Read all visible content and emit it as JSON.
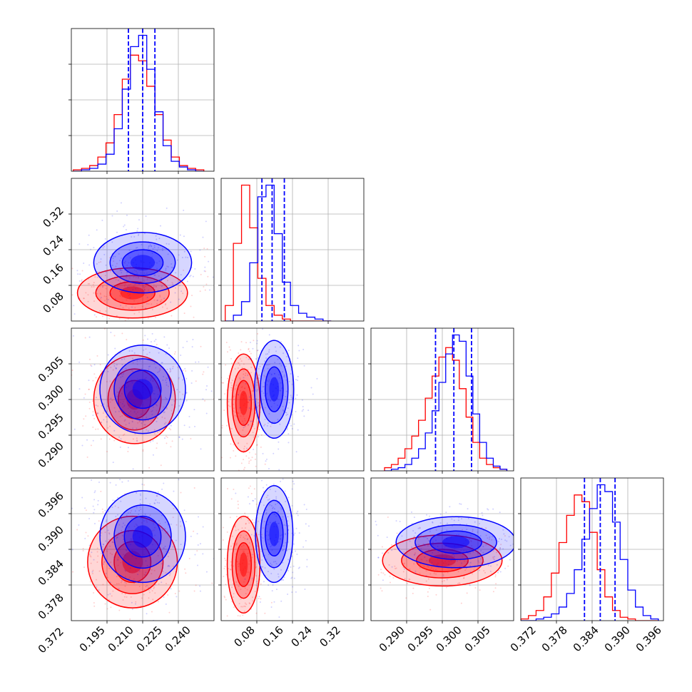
{
  "chart_data": {
    "type": "corner",
    "grid": true,
    "colors": {
      "red": "#ff0000",
      "blue": "#0000ff"
    },
    "panels": [
      {
        "id": "0-0",
        "row": 0,
        "col": 0,
        "type": "histogram",
        "xlim": [
          0.185,
          0.255
        ],
        "bins": [
          0.186,
          0.19,
          0.194,
          0.198,
          0.202,
          0.206,
          0.21,
          0.214,
          0.218,
          0.222,
          0.226,
          0.23,
          0.234,
          0.238,
          0.242,
          0.246,
          0.25
        ],
        "series": [
          {
            "color": "red",
            "counts": [
              1,
              2,
              4,
              10,
              20,
              40,
              65,
              82,
              78,
              60,
              40,
              22,
              10,
              4,
              2,
              1
            ]
          },
          {
            "color": "blue",
            "counts": [
              0,
              1,
              2,
              5,
              12,
              30,
              58,
              88,
              96,
              72,
              42,
              18,
              7,
              3,
              1,
              0
            ]
          }
        ],
        "quantiles": [
          0.213,
          0.22,
          0.226
        ]
      },
      {
        "id": "1-0",
        "row": 1,
        "col": 0,
        "type": "2d",
        "xlim": [
          0.185,
          0.255
        ],
        "ylim": [
          0.05,
          0.38
        ],
        "yticks": [
          "0.32",
          "0.24",
          "0.16",
          "0.08"
        ],
        "series": [
          {
            "color": "red",
            "center": [
              0.215,
              0.115
            ],
            "levels": [
              [
                0.006,
                0.015
              ],
              [
                0.011,
                0.026
              ],
              [
                0.018,
                0.04
              ],
              [
                0.027,
                0.058
              ]
            ]
          },
          {
            "color": "blue",
            "center": [
              0.22,
              0.185
            ],
            "levels": [
              [
                0.006,
                0.018
              ],
              [
                0.01,
                0.03
              ],
              [
                0.016,
                0.048
              ],
              [
                0.024,
                0.07
              ]
            ]
          }
        ]
      },
      {
        "id": "1-1",
        "row": 1,
        "col": 1,
        "type": "histogram",
        "xlim": [
          0.05,
          0.4
        ],
        "bins": [
          0.06,
          0.08,
          0.1,
          0.12,
          0.14,
          0.16,
          0.18,
          0.2,
          0.22,
          0.24,
          0.26,
          0.28,
          0.3,
          0.32
        ],
        "series": [
          {
            "color": "red",
            "counts": [
              8,
              40,
              70,
              48,
              22,
              8,
              3,
              1,
              0,
              0,
              0,
              0,
              0
            ]
          },
          {
            "color": "blue",
            "counts": [
              0,
              3,
              10,
              30,
              64,
              70,
              45,
              20,
              8,
              4,
              2,
              1,
              0
            ]
          }
        ],
        "quantiles": [
          0.15,
          0.175,
          0.205
        ]
      },
      {
        "id": "2-0",
        "row": 2,
        "col": 0,
        "type": "2d",
        "xlim": [
          0.185,
          0.255
        ],
        "ylim": [
          0.286,
          0.307
        ],
        "yticks": [
          "0.305",
          "0.300",
          "0.295",
          "0.290"
        ],
        "series": [
          {
            "color": "red",
            "center": [
              0.216,
              0.2965
            ],
            "levels": [
              [
                0.004,
                0.0015
              ],
              [
                0.008,
                0.0028
              ],
              [
                0.013,
                0.0045
              ],
              [
                0.02,
                0.0065
              ]
            ]
          },
          {
            "color": "blue",
            "center": [
              0.22,
              0.298
            ],
            "levels": [
              [
                0.005,
                0.0015
              ],
              [
                0.009,
                0.0028
              ],
              [
                0.014,
                0.0045
              ],
              [
                0.021,
                0.0065
              ]
            ]
          }
        ]
      },
      {
        "id": "2-1",
        "row": 2,
        "col": 1,
        "type": "2d",
        "xlim": [
          0.05,
          0.4
        ],
        "ylim": [
          0.286,
          0.307
        ],
        "series": [
          {
            "color": "red",
            "center": [
              0.105,
              0.296
            ],
            "levels": [
              [
                0.01,
                0.0018
              ],
              [
                0.019,
                0.0033
              ],
              [
                0.028,
                0.005
              ],
              [
                0.04,
                0.0072
              ]
            ]
          },
          {
            "color": "blue",
            "center": [
              0.18,
              0.298
            ],
            "levels": [
              [
                0.012,
                0.0018
              ],
              [
                0.022,
                0.0033
              ],
              [
                0.034,
                0.005
              ],
              [
                0.048,
                0.0072
              ]
            ]
          }
        ]
      },
      {
        "id": "2-2",
        "row": 2,
        "col": 2,
        "type": "histogram",
        "xlim": [
          0.286,
          0.307
        ],
        "bins": [
          0.288,
          0.289,
          0.29,
          0.291,
          0.292,
          0.293,
          0.294,
          0.295,
          0.296,
          0.297,
          0.298,
          0.299,
          0.3,
          0.301,
          0.302,
          0.303,
          0.304,
          0.305,
          0.306
        ],
        "series": [
          {
            "color": "red",
            "counts": [
              2,
              4,
              8,
              14,
              22,
              32,
              46,
              60,
              72,
              78,
              70,
              52,
              34,
              18,
              8,
              4,
              2,
              1
            ]
          },
          {
            "color": "blue",
            "counts": [
              0,
              1,
              2,
              4,
              8,
              14,
              24,
              38,
              56,
              74,
              86,
              82,
              60,
              36,
              18,
              8,
              3,
              1
            ]
          }
        ],
        "quantiles": [
          0.2955,
          0.2982,
          0.3008
        ]
      },
      {
        "id": "3-0",
        "row": 3,
        "col": 0,
        "type": "2d",
        "xlim": [
          0.185,
          0.255
        ],
        "ylim": [
          0.372,
          0.4
        ],
        "yticks": [
          "0.396",
          "0.390",
          "0.384",
          "0.378",
          "0.372"
        ],
        "xticks": [
          "0.195",
          "0.210",
          "0.225",
          "0.240"
        ],
        "series": [
          {
            "color": "red",
            "center": [
              0.215,
              0.3835
            ],
            "levels": [
              [
                0.005,
                0.0022
              ],
              [
                0.009,
                0.004
              ],
              [
                0.015,
                0.0062
              ],
              [
                0.022,
                0.009
              ]
            ]
          },
          {
            "color": "blue",
            "center": [
              0.22,
              0.3885
            ],
            "levels": [
              [
                0.005,
                0.0022
              ],
              [
                0.009,
                0.004
              ],
              [
                0.014,
                0.0062
              ],
              [
                0.021,
                0.009
              ]
            ]
          }
        ]
      },
      {
        "id": "3-1",
        "row": 3,
        "col": 1,
        "type": "2d",
        "xlim": [
          0.05,
          0.4
        ],
        "ylim": [
          0.372,
          0.4
        ],
        "xticks": [
          "0.08",
          "0.16",
          "0.24",
          "0.32"
        ],
        "series": [
          {
            "color": "red",
            "center": [
              0.105,
              0.383
            ],
            "levels": [
              [
                0.01,
                0.0024
              ],
              [
                0.019,
                0.0043
              ],
              [
                0.028,
                0.0066
              ],
              [
                0.04,
                0.0095
              ]
            ]
          },
          {
            "color": "blue",
            "center": [
              0.18,
              0.389
            ],
            "levels": [
              [
                0.012,
                0.0024
              ],
              [
                0.022,
                0.0043
              ],
              [
                0.033,
                0.0066
              ],
              [
                0.046,
                0.0095
              ]
            ]
          }
        ]
      },
      {
        "id": "3-2",
        "row": 3,
        "col": 2,
        "type": "2d",
        "xlim": [
          0.286,
          0.307
        ],
        "ylim": [
          0.372,
          0.4
        ],
        "xticks": [
          "0.290",
          "0.295",
          "0.300",
          "0.305"
        ],
        "series": [
          {
            "color": "red",
            "center": [
              0.2965,
              0.3838
            ],
            "levels": [
              [
                0.002,
                0.0012
              ],
              [
                0.0038,
                0.0022
              ],
              [
                0.006,
                0.0034
              ],
              [
                0.0088,
                0.005
              ]
            ]
          },
          {
            "color": "blue",
            "center": [
              0.2985,
              0.3874
            ],
            "levels": [
              [
                0.002,
                0.0012
              ],
              [
                0.0038,
                0.0022
              ],
              [
                0.006,
                0.0034
              ],
              [
                0.0088,
                0.005
              ]
            ]
          }
        ]
      },
      {
        "id": "3-3",
        "row": 3,
        "col": 3,
        "type": "histogram",
        "xlim": [
          0.372,
          0.4
        ],
        "xticks": [
          "0.372",
          "0.378",
          "0.384",
          "0.390",
          "0.396"
        ],
        "bins": [
          0.372,
          0.3735,
          0.375,
          0.3765,
          0.378,
          0.3795,
          0.381,
          0.3825,
          0.384,
          0.3855,
          0.387,
          0.3885,
          0.39,
          0.3915,
          0.393,
          0.3945,
          0.396,
          0.3975,
          0.399
        ],
        "series": [
          {
            "color": "red",
            "counts": [
              1,
              3,
              6,
              14,
              28,
              46,
              62,
              74,
              70,
              52,
              30,
              14,
              6,
              2,
              1,
              0,
              0,
              0
            ]
          },
          {
            "color": "blue",
            "counts": [
              0,
              0,
              1,
              2,
              4,
              8,
              16,
              30,
              48,
              66,
              80,
              76,
              58,
              36,
              18,
              8,
              3,
              1
            ]
          }
        ],
        "quantiles": [
          0.3845,
          0.3876,
          0.3905
        ]
      }
    ]
  }
}
